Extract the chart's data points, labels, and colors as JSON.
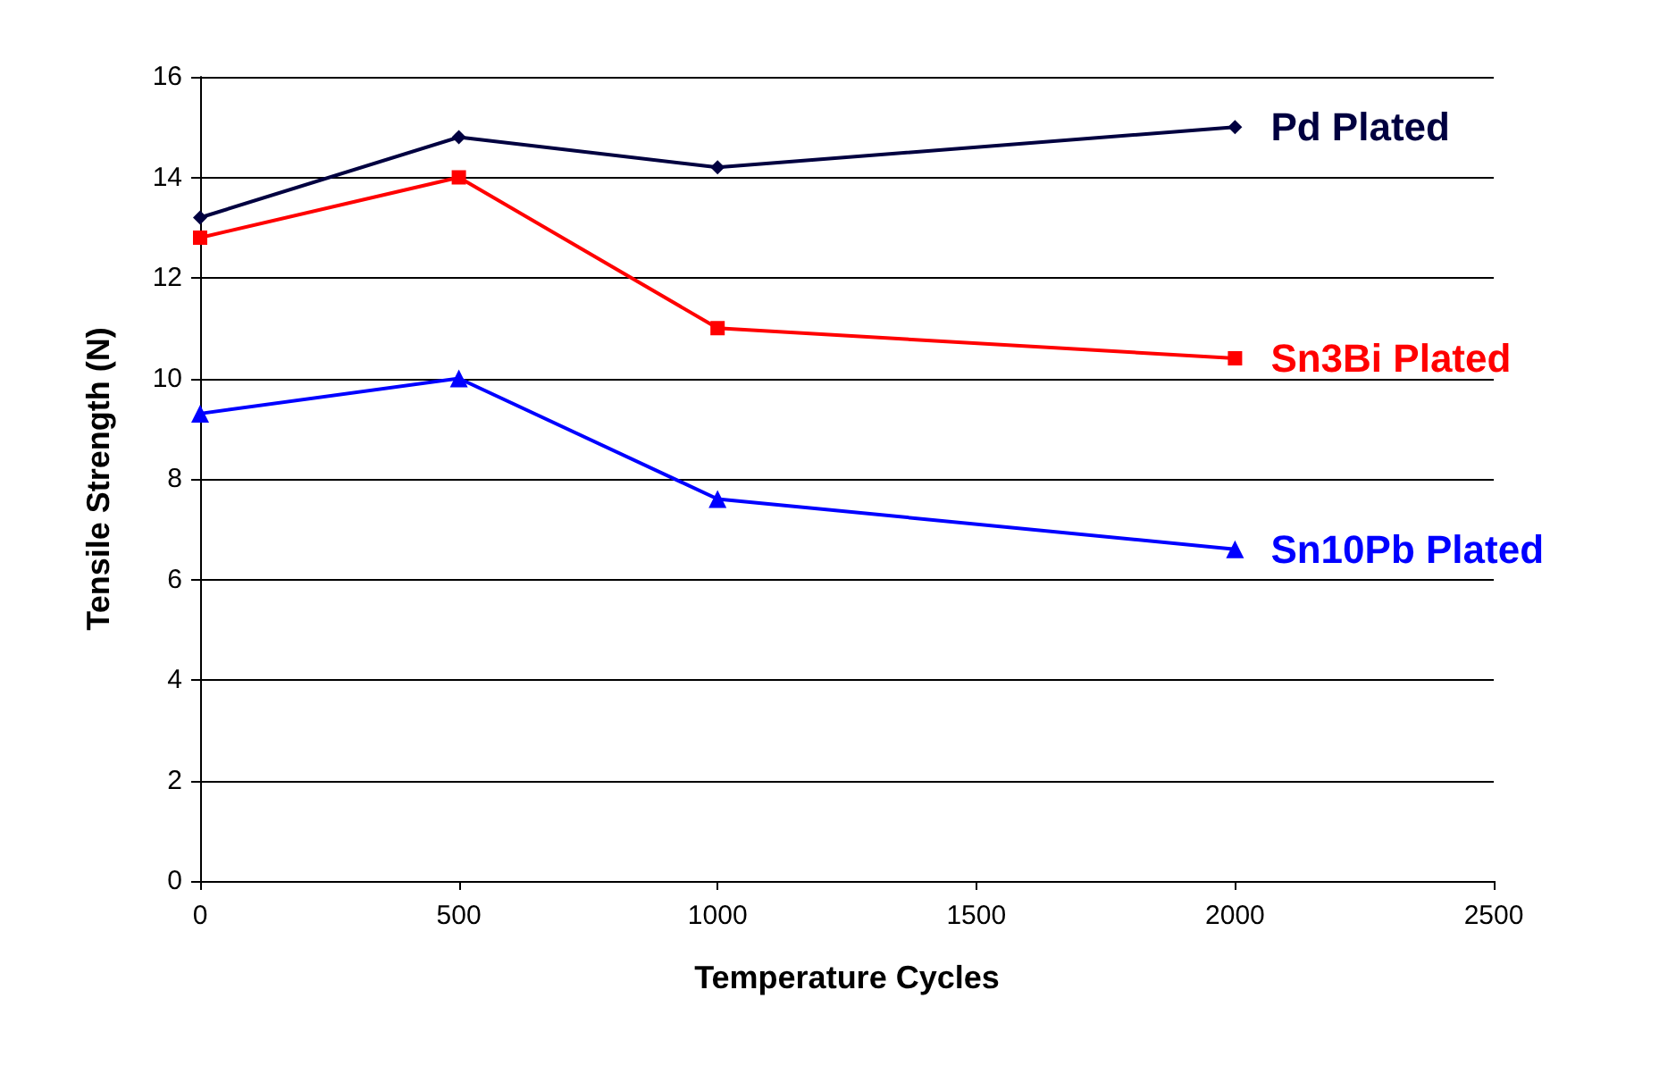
{
  "chart_data": {
    "type": "line",
    "xlabel": "Temperature Cycles",
    "ylabel": "Tensile Strength (N)",
    "x": [
      0,
      500,
      1000,
      2000
    ],
    "series": [
      {
        "name": "Pd Plated",
        "color": "#000040",
        "marker": "diamond",
        "values": [
          13.2,
          14.8,
          14.2,
          15.0
        ]
      },
      {
        "name": "Sn3Bi Plated",
        "color": "#ff0000",
        "marker": "square",
        "values": [
          12.8,
          14.0,
          11.0,
          10.4
        ]
      },
      {
        "name": "Sn10Pb Plated",
        "color": "#0000ff",
        "marker": "triangle",
        "values": [
          9.3,
          10.0,
          7.6,
          6.6
        ]
      }
    ],
    "xlim": [
      0,
      2500
    ],
    "xticks": [
      0,
      500,
      1000,
      1500,
      2000,
      2500
    ],
    "ylim": [
      0,
      16
    ],
    "yticks": [
      0,
      2,
      4,
      6,
      8,
      10,
      12,
      14,
      16
    ],
    "grid": "y",
    "legend": false,
    "line_style": "solid"
  }
}
